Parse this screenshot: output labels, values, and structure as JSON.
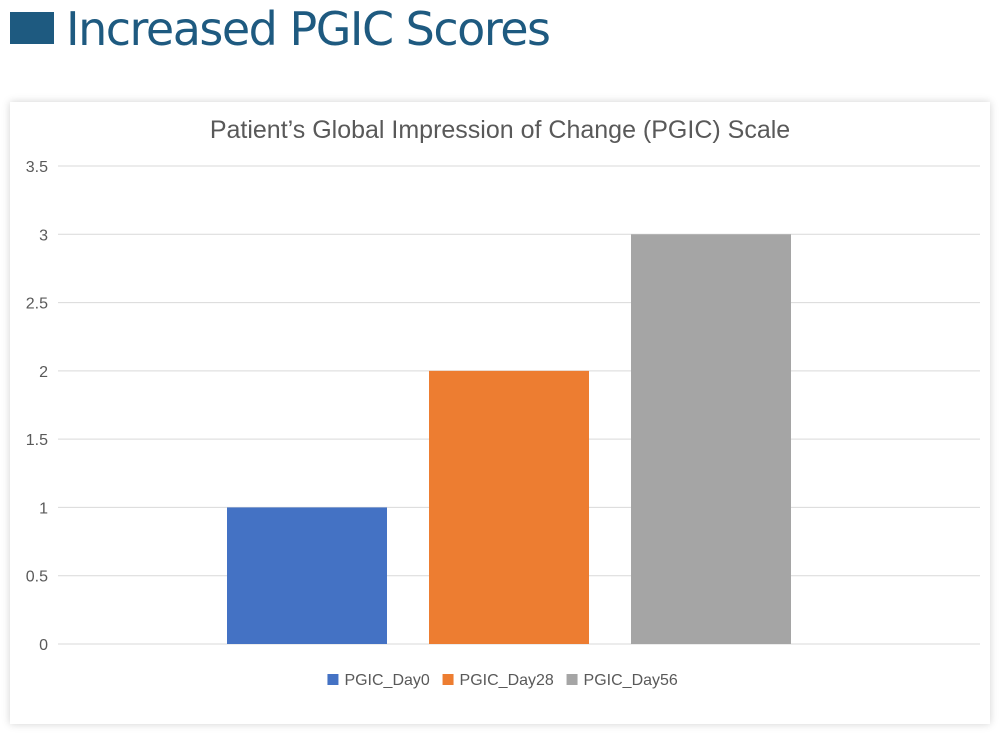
{
  "page": {
    "title": "Increased PGIC Scores",
    "title_color": "#1e5a80",
    "accent_block_color": "#1e5a80"
  },
  "chart_data": {
    "type": "bar",
    "title": "Patient’s Global Impression of Change (PGIC) Scale",
    "categories": [
      "PGIC_Day0",
      "PGIC_Day28",
      "PGIC_Day56"
    ],
    "series": [
      {
        "name": "PGIC_Day0",
        "value": 1,
        "color": "#4472c4"
      },
      {
        "name": "PGIC_Day28",
        "value": 2,
        "color": "#ed7d31"
      },
      {
        "name": "PGIC_Day56",
        "value": 3,
        "color": "#a5a5a5"
      }
    ],
    "ylim": [
      0,
      3.5
    ],
    "yticks": [
      "0",
      "0.5",
      "1",
      "1.5",
      "2",
      "2.5",
      "3",
      "3.5"
    ],
    "xlabel": "",
    "ylabel": "",
    "grid": true,
    "legend_position": "bottom"
  }
}
